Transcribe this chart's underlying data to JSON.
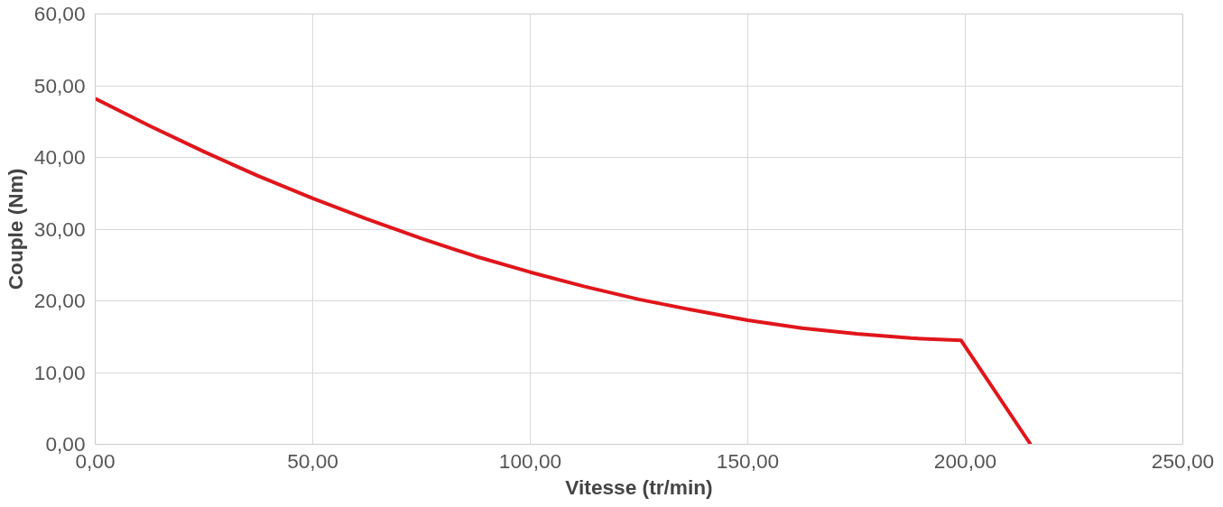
{
  "chart_data": {
    "type": "line",
    "xlabel": "Vitesse (tr/min)",
    "ylabel": "Couple (Nm)",
    "x": [
      0,
      12.5,
      25,
      37.5,
      50,
      62.5,
      75,
      87.5,
      100,
      112.5,
      125,
      137.5,
      150,
      162.5,
      175,
      187.5,
      199,
      215
    ],
    "series": [
      {
        "color": "#e0161b",
        "values": [
          48.2,
          44.4,
          40.8,
          37.4,
          34.3,
          31.4,
          28.7,
          26.2,
          24.0,
          22.0,
          20.2,
          18.7,
          17.3,
          16.2,
          15.4,
          14.8,
          14.5,
          0
        ]
      }
    ],
    "xlim": [
      0,
      250
    ],
    "ylim": [
      0,
      60
    ],
    "xticks": [
      {
        "value": 0,
        "label": "0,00"
      },
      {
        "value": 50,
        "label": "50,00"
      },
      {
        "value": 100,
        "label": "100,00"
      },
      {
        "value": 150,
        "label": "150,00"
      },
      {
        "value": 200,
        "label": "200,00"
      },
      {
        "value": 250,
        "label": "250,00"
      }
    ],
    "yticks": [
      {
        "value": 0,
        "label": "0,00"
      },
      {
        "value": 10,
        "label": "10,00"
      },
      {
        "value": 20,
        "label": "20,00"
      },
      {
        "value": 30,
        "label": "30,00"
      },
      {
        "value": 40,
        "label": "40,00"
      },
      {
        "value": 50,
        "label": "50,00"
      },
      {
        "value": 60,
        "label": "60,00"
      }
    ],
    "grid": true,
    "marker": "none",
    "line_style": "solid"
  }
}
